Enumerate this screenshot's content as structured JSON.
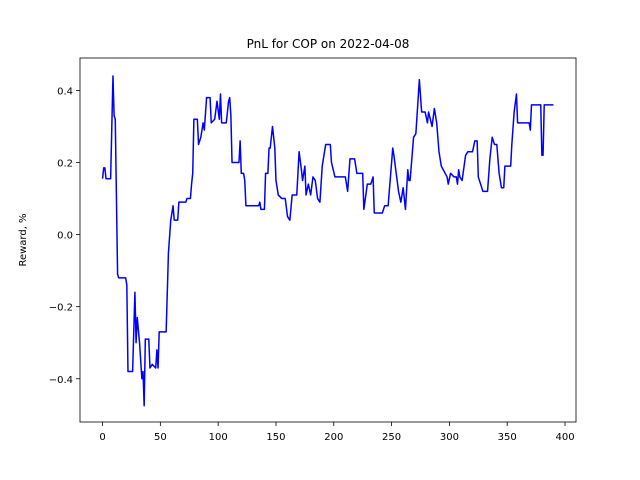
{
  "chart_data": {
    "type": "line",
    "title": "PnL for COP on 2022-04-08",
    "y_label": "Reward, %",
    "x": [
      0,
      1,
      2,
      3,
      7,
      9,
      10,
      11,
      13,
      14,
      20,
      21,
      22,
      26,
      28,
      29,
      30,
      32,
      34,
      35,
      36,
      37,
      40,
      41,
      43,
      46,
      47,
      48,
      49,
      55,
      57,
      59,
      61,
      62,
      65,
      66,
      72,
      73,
      76,
      77,
      78,
      79,
      82,
      83,
      85,
      87,
      88,
      90,
      93,
      94,
      97,
      99,
      101,
      102,
      103,
      107,
      109,
      110,
      111,
      112,
      118,
      119,
      120,
      122,
      123,
      124,
      135,
      136,
      137,
      140,
      141,
      143,
      144,
      145,
      147,
      149,
      150,
      152,
      155,
      158,
      160,
      162,
      164,
      168,
      170,
      172,
      173,
      175,
      176,
      178,
      180,
      182,
      184,
      186,
      188,
      190,
      193,
      197,
      198,
      201,
      210,
      212,
      214,
      218,
      220,
      225,
      226,
      229,
      232,
      234,
      235,
      242,
      244,
      247,
      249,
      251,
      252,
      256,
      258,
      260,
      262,
      264,
      265,
      266,
      269,
      271,
      274,
      276,
      279,
      281,
      282,
      285,
      287,
      289,
      291,
      293,
      298,
      299,
      301,
      304,
      306,
      307,
      308,
      309,
      311,
      314,
      316,
      320,
      322,
      324,
      325,
      329,
      333,
      335,
      337,
      339,
      341,
      343,
      345,
      347,
      348,
      353,
      354,
      356,
      358,
      359,
      369,
      370,
      371,
      379,
      380,
      381,
      382,
      390
    ],
    "series": [
      {
        "name": "PnL",
        "color": "#0000ff",
        "values": [
          0.155,
          0.185,
          0.185,
          0.155,
          0.155,
          0.44,
          0.33,
          0.32,
          -0.11,
          -0.12,
          -0.12,
          -0.14,
          -0.38,
          -0.38,
          -0.16,
          -0.3,
          -0.23,
          -0.3,
          -0.4,
          -0.38,
          -0.475,
          -0.29,
          -0.29,
          -0.37,
          -0.36,
          -0.37,
          -0.32,
          -0.37,
          -0.27,
          -0.27,
          -0.05,
          0.04,
          0.08,
          0.04,
          0.04,
          0.09,
          0.09,
          0.1,
          0.1,
          0.14,
          0.17,
          0.32,
          0.32,
          0.25,
          0.27,
          0.31,
          0.29,
          0.38,
          0.38,
          0.31,
          0.32,
          0.37,
          0.32,
          0.39,
          0.31,
          0.31,
          0.37,
          0.38,
          0.33,
          0.2,
          0.2,
          0.26,
          0.17,
          0.17,
          0.15,
          0.08,
          0.08,
          0.09,
          0.07,
          0.07,
          0.17,
          0.17,
          0.24,
          0.24,
          0.3,
          0.24,
          0.15,
          0.11,
          0.1,
          0.1,
          0.05,
          0.04,
          0.11,
          0.11,
          0.23,
          0.18,
          0.15,
          0.19,
          0.11,
          0.14,
          0.11,
          0.16,
          0.15,
          0.1,
          0.09,
          0.19,
          0.25,
          0.25,
          0.2,
          0.16,
          0.16,
          0.12,
          0.21,
          0.21,
          0.17,
          0.17,
          0.07,
          0.14,
          0.14,
          0.16,
          0.06,
          0.06,
          0.08,
          0.08,
          0.16,
          0.24,
          0.22,
          0.12,
          0.09,
          0.13,
          0.07,
          0.18,
          0.15,
          0.15,
          0.27,
          0.28,
          0.43,
          0.34,
          0.34,
          0.31,
          0.34,
          0.3,
          0.35,
          0.31,
          0.23,
          0.19,
          0.16,
          0.14,
          0.17,
          0.16,
          0.16,
          0.14,
          0.18,
          0.16,
          0.15,
          0.22,
          0.23,
          0.23,
          0.26,
          0.26,
          0.16,
          0.12,
          0.12,
          0.21,
          0.27,
          0.25,
          0.25,
          0.17,
          0.13,
          0.13,
          0.19,
          0.19,
          0.25,
          0.34,
          0.39,
          0.31,
          0.31,
          0.29,
          0.36,
          0.36,
          0.22,
          0.22,
          0.36,
          0.36
        ]
      }
    ],
    "xlim": [
      -19.5,
      409.5
    ],
    "xticks": [
      0,
      50,
      100,
      150,
      200,
      250,
      300,
      350,
      400
    ],
    "ylim": [
      -0.52,
      0.49
    ],
    "yticks": [
      {
        "value": -0.4,
        "label": "−0.4"
      },
      {
        "value": -0.2,
        "label": "−0.2"
      },
      {
        "value": 0,
        "label": "0.0"
      },
      {
        "value": 0.2,
        "label": "0.2"
      },
      {
        "value": 0.4,
        "label": "0.4"
      }
    ]
  }
}
